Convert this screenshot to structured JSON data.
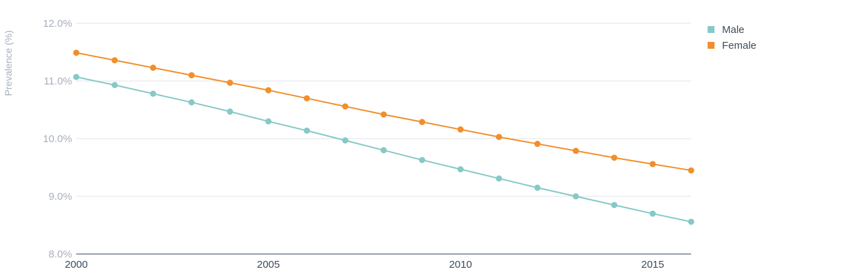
{
  "chart_data": {
    "type": "line",
    "ylabel": "Prevalence (%)",
    "xlabel": "",
    "x": [
      2000,
      2001,
      2002,
      2003,
      2004,
      2005,
      2006,
      2007,
      2008,
      2009,
      2010,
      2011,
      2012,
      2013,
      2014,
      2015,
      2016
    ],
    "xlim": [
      2000,
      2016
    ],
    "ylim": [
      8.0,
      12.0
    ],
    "x_ticks": [
      2000,
      2005,
      2010,
      2015
    ],
    "x_tick_labels": [
      "2000",
      "2005",
      "2010",
      "2015"
    ],
    "y_ticks": [
      8.0,
      9.0,
      10.0,
      11.0,
      12.0
    ],
    "y_tick_labels": [
      "8.0%",
      "9.0%",
      "10.0%",
      "11.0%",
      "12.0%"
    ],
    "grid": "horizontal",
    "legend_position": "top-right",
    "series": [
      {
        "name": "Male",
        "color": "#86c9c7",
        "values": [
          11.07,
          10.93,
          10.78,
          10.63,
          10.47,
          10.3,
          10.14,
          9.97,
          9.8,
          9.63,
          9.47,
          9.31,
          9.15,
          9.0,
          8.85,
          8.7,
          8.56
        ]
      },
      {
        "name": "Female",
        "color": "#f28e2b",
        "values": [
          11.49,
          11.36,
          11.23,
          11.1,
          10.97,
          10.84,
          10.7,
          10.56,
          10.42,
          10.29,
          10.16,
          10.03,
          9.91,
          9.79,
          9.67,
          9.56,
          9.45
        ]
      }
    ]
  }
}
